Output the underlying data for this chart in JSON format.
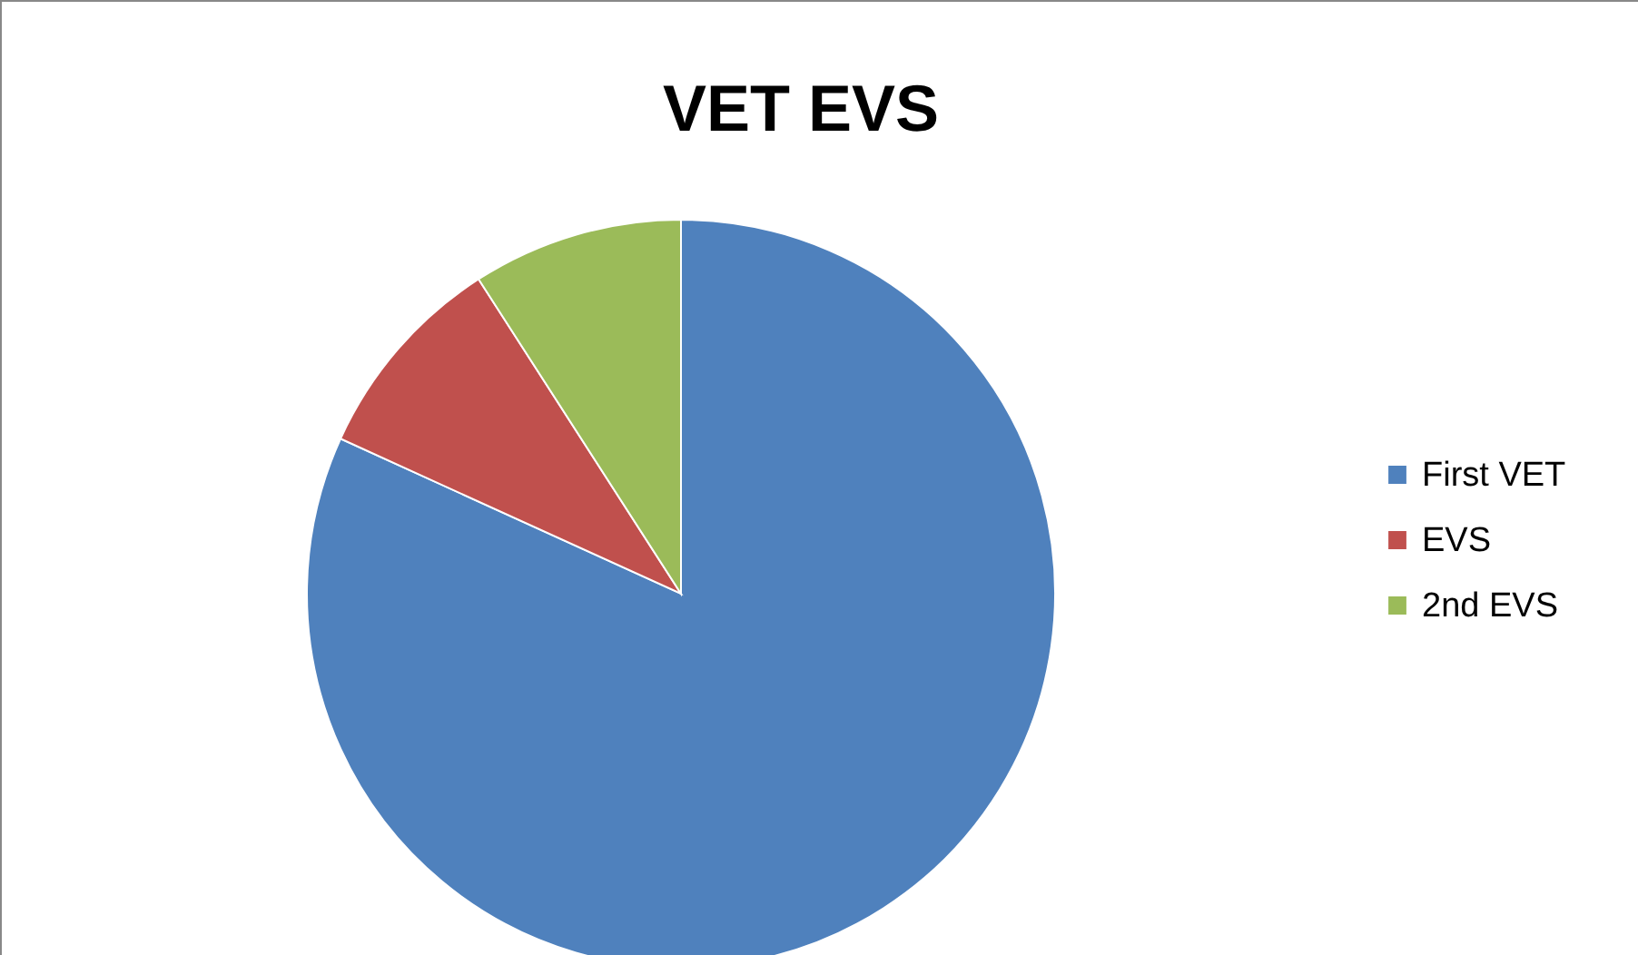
{
  "chart_data": {
    "type": "pie",
    "title": "VET EVS",
    "categories": [
      "First VET",
      "EVS",
      "2nd EVS"
    ],
    "values": [
      81.8,
      9.1,
      9.1
    ],
    "colors": [
      "#4f81bd",
      "#c0504d",
      "#9bbb59"
    ],
    "legend": "right"
  }
}
